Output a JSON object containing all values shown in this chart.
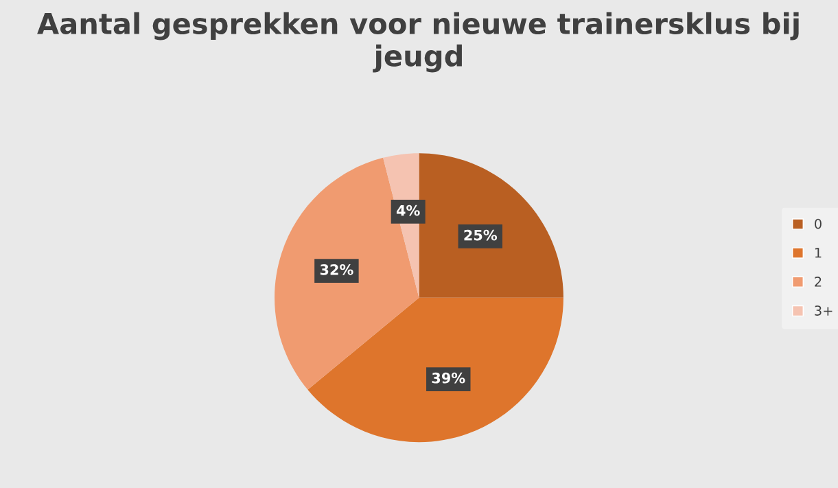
{
  "chart_data": {
    "type": "pie",
    "title": "Aantal gesprekken voor nieuwe trainersklus bij jeugd",
    "categories": [
      "0",
      "1",
      "2",
      "3+"
    ],
    "values": [
      25,
      39,
      32,
      4
    ],
    "value_labels": [
      "25%",
      "39%",
      "32%",
      "4%"
    ],
    "colors": [
      "#b95f22",
      "#de752c",
      "#f09b70",
      "#f5c3b1"
    ],
    "legend": "right"
  }
}
